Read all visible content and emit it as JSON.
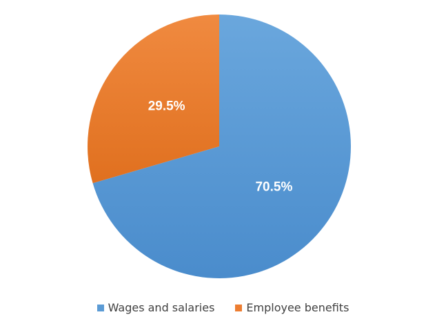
{
  "chart_data": {
    "type": "pie",
    "categories": [
      "Wages and salaries",
      "Employee benefits"
    ],
    "values": [
      70.5,
      29.5
    ],
    "data_labels": [
      "70.5%",
      "29.5%"
    ],
    "colors": [
      "#5b9bd5",
      "#ed7d31"
    ],
    "start_angle_deg": 0,
    "direction": "clockwise",
    "legend_position": "bottom",
    "title": ""
  }
}
